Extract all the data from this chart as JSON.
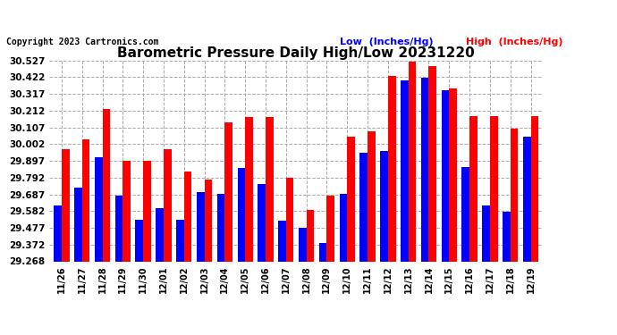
{
  "title": "Barometric Pressure Daily High/Low 20231220",
  "copyright": "Copyright 2023 Cartronics.com",
  "legend_low": "Low  (Inches/Hg)",
  "legend_high": "High  (Inches/Hg)",
  "dates": [
    "11/26",
    "11/27",
    "11/28",
    "11/29",
    "11/30",
    "12/01",
    "12/02",
    "12/03",
    "12/04",
    "12/05",
    "12/06",
    "12/07",
    "12/08",
    "12/09",
    "12/10",
    "12/11",
    "12/12",
    "12/13",
    "12/14",
    "12/15",
    "12/16",
    "12/17",
    "12/18",
    "12/19"
  ],
  "blue_values": [
    29.62,
    29.73,
    29.92,
    29.68,
    29.53,
    29.6,
    29.53,
    29.7,
    29.69,
    29.85,
    29.75,
    29.52,
    29.48,
    29.38,
    29.69,
    29.95,
    29.96,
    30.4,
    30.42,
    30.34,
    29.86,
    29.62,
    29.58,
    30.05
  ],
  "red_values": [
    29.97,
    30.03,
    30.22,
    29.9,
    29.9,
    29.97,
    29.83,
    29.78,
    30.14,
    30.17,
    30.17,
    29.79,
    29.59,
    29.68,
    30.05,
    30.08,
    30.43,
    30.52,
    30.49,
    30.35,
    30.18,
    30.18,
    30.1,
    30.18
  ],
  "ylim_min": 29.268,
  "ylim_max": 30.527,
  "ytick_values": [
    29.268,
    29.372,
    29.477,
    29.582,
    29.687,
    29.792,
    29.897,
    30.002,
    30.107,
    30.212,
    30.317,
    30.422,
    30.527
  ],
  "bar_color_blue": "#0000ff",
  "bar_color_red": "#ff0000",
  "bg_color": "#ffffff",
  "grid_color": "#aaaaaa",
  "title_color": "#000000",
  "copyright_color": "#000000",
  "legend_low_color": "#0000ff",
  "legend_high_color": "#ff0000",
  "title_fontsize": 11,
  "ytick_fontsize": 7.5,
  "xtick_fontsize": 7,
  "copyright_fontsize": 7,
  "legend_fontsize": 8
}
